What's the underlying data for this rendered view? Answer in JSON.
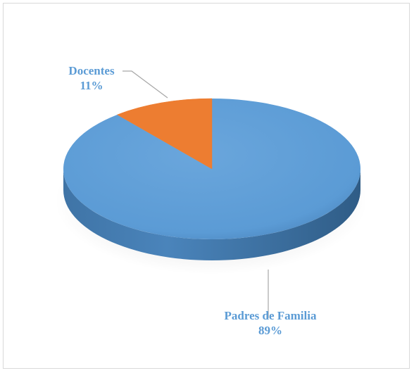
{
  "chart_data": {
    "type": "pie",
    "style": "3d",
    "slices": [
      {
        "label": "Padres de Familia",
        "value": 89,
        "display": "89%",
        "color": "#5b9bd5"
      },
      {
        "label": "Docentes",
        "value": 11,
        "display": "11%",
        "color": "#ed7d31"
      }
    ],
    "label_color": "#5b9bd5",
    "leader_line_color": "#a6a6a6"
  }
}
